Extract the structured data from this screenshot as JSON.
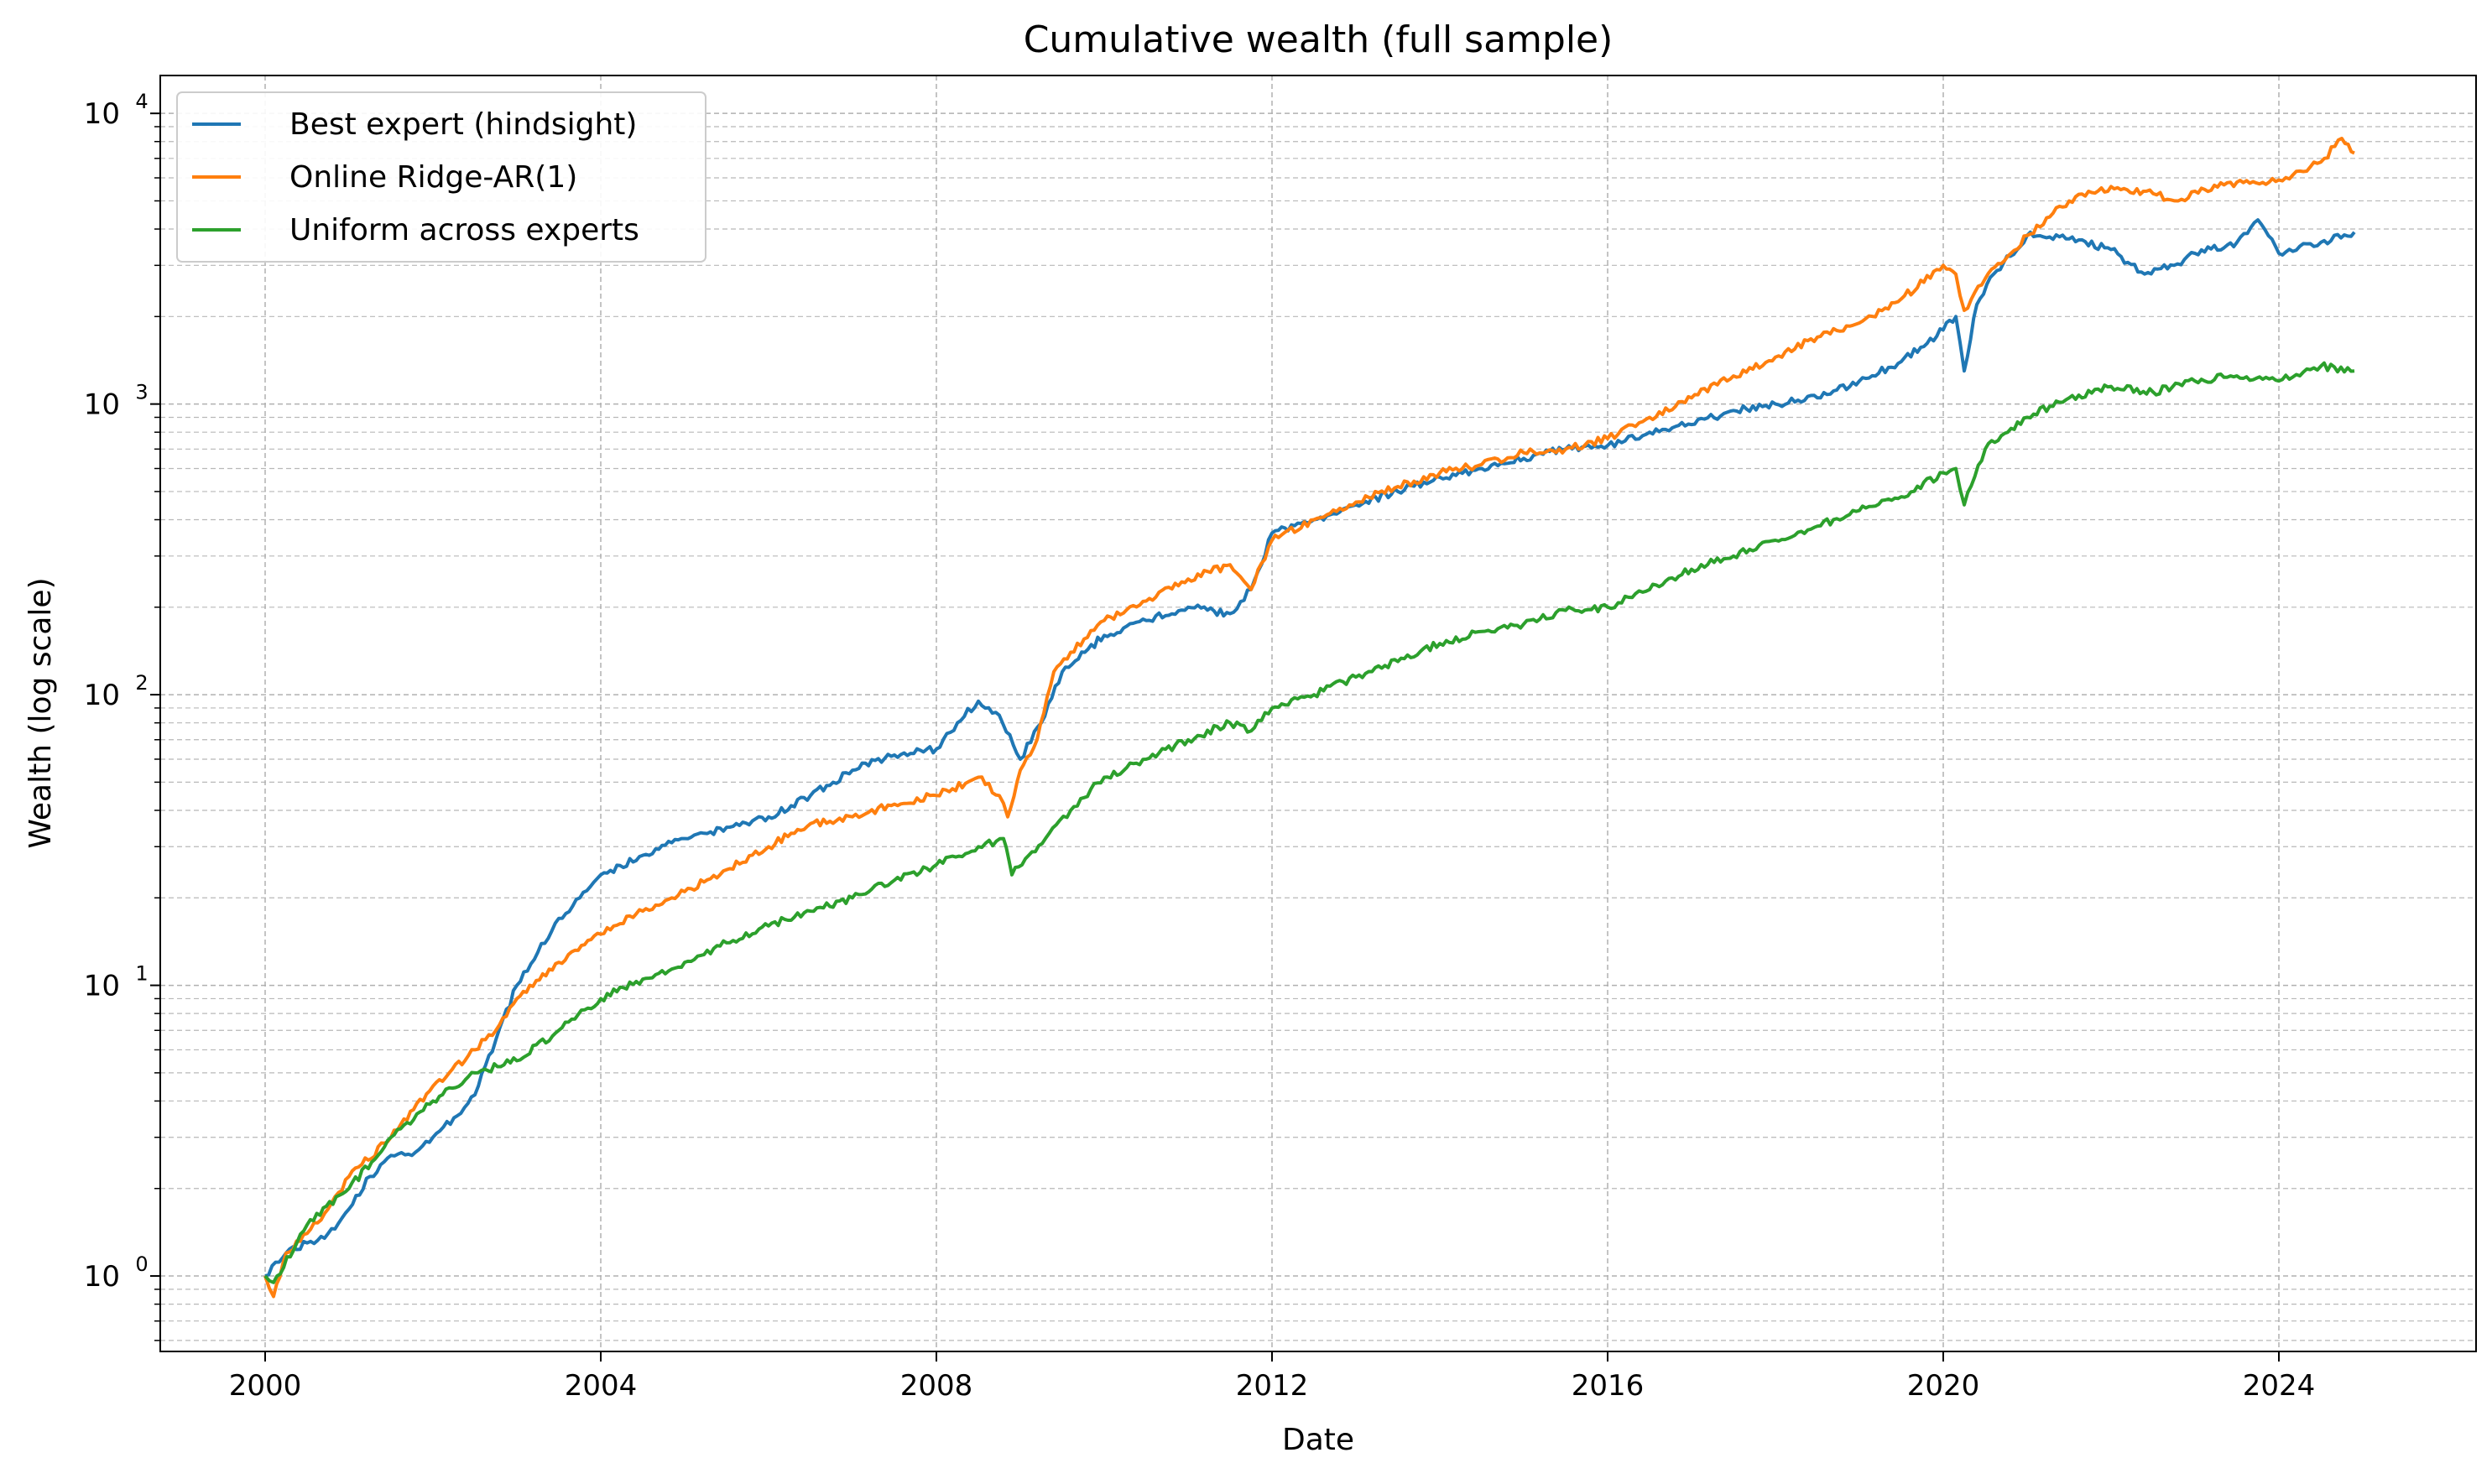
{
  "chart_data": {
    "type": "line",
    "title": "Cumulative wealth (full sample)",
    "xlabel": "Date",
    "ylabel": "Wealth (log scale)",
    "yscale": "log",
    "ylim": [
      0.55,
      13500
    ],
    "xlim": [
      1998.75,
      2026.35
    ],
    "x_ticks": [
      "2000",
      "2004",
      "2008",
      "2012",
      "2016",
      "2020",
      "2024"
    ],
    "y_ticks": [
      {
        "base": "10",
        "exp": "0"
      },
      {
        "base": "10",
        "exp": "1"
      },
      {
        "base": "10",
        "exp": "2"
      },
      {
        "base": "10",
        "exp": "3"
      },
      {
        "base": "10",
        "exp": "4"
      }
    ],
    "grid": true,
    "legend": "top-left",
    "series": [
      {
        "name": "Best expert (hindsight)",
        "color": "#1f77b4",
        "x": [
          2000.0,
          2000.25,
          2000.5,
          2000.75,
          2001.0,
          2001.25,
          2001.5,
          2001.75,
          2002.0,
          2002.25,
          2002.5,
          2002.75,
          2003.0,
          2003.25,
          2003.5,
          2003.75,
          2004.0,
          2004.5,
          2005.0,
          2005.5,
          2006.0,
          2006.5,
          2007.0,
          2007.5,
          2008.0,
          2008.25,
          2008.5,
          2008.75,
          2009.0,
          2009.25,
          2009.5,
          2010.0,
          2010.5,
          2011.0,
          2011.5,
          2011.75,
          2012.0,
          2012.5,
          2013.0,
          2013.5,
          2014.0,
          2014.5,
          2015.0,
          2015.5,
          2016.0,
          2016.5,
          2017.0,
          2017.5,
          2018.0,
          2018.5,
          2019.0,
          2019.5,
          2020.0,
          2020.15,
          2020.25,
          2020.4,
          2020.6,
          2021.0,
          2021.5,
          2022.0,
          2022.4,
          2022.75,
          2023.0,
          2023.5,
          2023.75,
          2024.0,
          2024.5,
          2024.9
        ],
        "y": [
          1.0,
          1.2,
          1.3,
          1.4,
          1.7,
          2.2,
          2.6,
          2.6,
          3.0,
          3.5,
          4.2,
          6.5,
          10.0,
          13.0,
          17.0,
          20.0,
          24.0,
          28.0,
          32.0,
          35.0,
          38.0,
          45.0,
          55.0,
          62.0,
          65.0,
          80.0,
          95.0,
          85.0,
          60.0,
          80.0,
          120.0,
          160.0,
          180.0,
          200.0,
          190.0,
          230.0,
          360.0,
          400.0,
          450.0,
          500.0,
          560.0,
          600.0,
          650.0,
          700.0,
          720.0,
          800.0,
          850.0,
          950.0,
          1000.0,
          1050.0,
          1200.0,
          1400.0,
          1800.0,
          2000.0,
          1300.0,
          2200.0,
          2800.0,
          3800.0,
          3700.0,
          3400.0,
          2800.0,
          3000.0,
          3300.0,
          3600.0,
          4300.0,
          3300.0,
          3600.0,
          3900.0
        ]
      },
      {
        "name": "Online Ridge-AR(1)",
        "color": "#ff7f0e",
        "x": [
          2000.0,
          2000.1,
          2000.25,
          2000.5,
          2000.75,
          2001.0,
          2001.5,
          2002.0,
          2002.5,
          2002.75,
          2003.0,
          2003.5,
          2004.0,
          2004.5,
          2005.0,
          2005.5,
          2006.0,
          2006.5,
          2007.0,
          2007.5,
          2008.0,
          2008.5,
          2008.75,
          2008.85,
          2009.0,
          2009.2,
          2009.4,
          2009.6,
          2010.0,
          2010.5,
          2011.0,
          2011.5,
          2011.75,
          2012.0,
          2012.5,
          2013.0,
          2013.5,
          2014.0,
          2014.5,
          2015.0,
          2015.5,
          2016.0,
          2016.5,
          2017.0,
          2017.5,
          2018.0,
          2018.5,
          2019.0,
          2019.5,
          2020.0,
          2020.15,
          2020.25,
          2020.5,
          2021.0,
          2021.5,
          2022.0,
          2022.5,
          2022.8,
          2023.0,
          2023.5,
          2024.0,
          2024.5,
          2024.75,
          2024.9
        ],
        "y": [
          1.0,
          0.85,
          1.2,
          1.4,
          1.7,
          2.2,
          3.0,
          4.5,
          6.0,
          7.0,
          9.0,
          12.0,
          15.0,
          18.0,
          21.0,
          25.0,
          30.0,
          36.0,
          38.0,
          42.0,
          45.0,
          52.0,
          45.0,
          38.0,
          55.0,
          70.0,
          120.0,
          140.0,
          180.0,
          210.0,
          250.0,
          280.0,
          230.0,
          340.0,
          400.0,
          460.0,
          520.0,
          580.0,
          620.0,
          680.0,
          700.0,
          760.0,
          900.0,
          1050.0,
          1250.0,
          1450.0,
          1700.0,
          1900.0,
          2300.0,
          3000.0,
          2800.0,
          2100.0,
          2700.0,
          3800.0,
          5000.0,
          5600.0,
          5300.0,
          5000.0,
          5400.0,
          5800.0,
          5900.0,
          6800.0,
          8200.0,
          7300.0
        ]
      },
      {
        "name": "Uniform across experts",
        "color": "#2ca02c",
        "x": [
          2000.0,
          2000.1,
          2000.5,
          2001.0,
          2001.5,
          2002.0,
          2002.5,
          2003.0,
          2003.5,
          2004.0,
          2004.5,
          2005.0,
          2005.5,
          2006.0,
          2006.5,
          2007.0,
          2007.5,
          2008.0,
          2008.5,
          2008.8,
          2008.9,
          2009.1,
          2009.3,
          2009.6,
          2010.0,
          2010.5,
          2011.0,
          2011.5,
          2011.75,
          2012.0,
          2012.5,
          2013.0,
          2013.5,
          2014.0,
          2014.5,
          2015.0,
          2015.5,
          2016.0,
          2016.5,
          2017.0,
          2017.5,
          2018.0,
          2018.5,
          2019.0,
          2019.5,
          2020.0,
          2020.15,
          2020.25,
          2020.5,
          2021.0,
          2021.5,
          2022.0,
          2022.5,
          2023.0,
          2023.5,
          2024.0,
          2024.5,
          2024.9
        ],
        "y": [
          1.0,
          0.95,
          1.5,
          2.0,
          3.0,
          4.0,
          5.0,
          5.5,
          7.0,
          9.0,
          10.5,
          12.0,
          14.0,
          16.0,
          18.0,
          20.0,
          23.0,
          26.0,
          30.0,
          32.0,
          24.0,
          28.0,
          32.0,
          40.0,
          52.0,
          60.0,
          70.0,
          80.0,
          75.0,
          90.0,
          100.0,
          115.0,
          130.0,
          150.0,
          165.0,
          175.0,
          195.0,
          200.0,
          230.0,
          270.0,
          300.0,
          340.0,
          380.0,
          430.0,
          480.0,
          580.0,
          600.0,
          450.0,
          700.0,
          900.0,
          1050.0,
          1150.0,
          1100.0,
          1200.0,
          1250.0,
          1200.0,
          1350.0,
          1300.0
        ]
      }
    ]
  }
}
